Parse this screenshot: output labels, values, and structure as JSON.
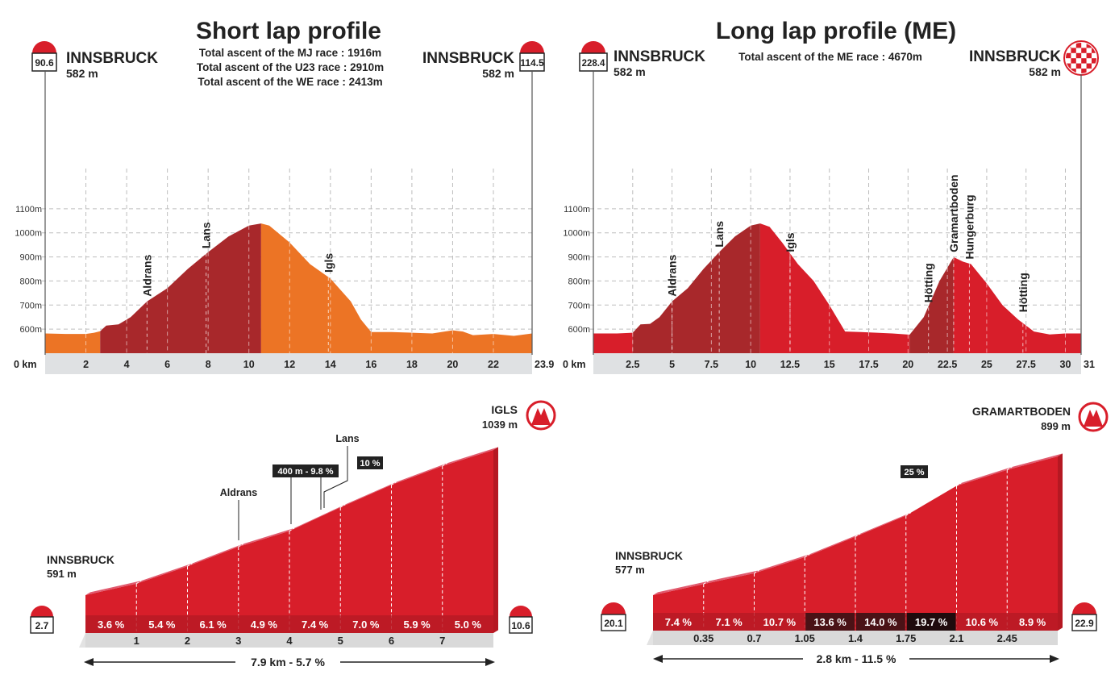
{
  "colors": {
    "dark_red": "#a8282b",
    "red": "#d81e2a",
    "orange": "#ec7425",
    "pink": "#e15a6e",
    "grid": "#bdbdbd",
    "axis_band": "#dfe1e3"
  },
  "short_lap": {
    "title": "Short lap profile",
    "ascent_lines": [
      "Total ascent of the MJ race : 1916m",
      "Total ascent of the U23 race : 2910m",
      "Total ascent of the WE race : 2413m"
    ],
    "start": {
      "city": "INNSBRUCK",
      "alt": "582 m",
      "km": "90.6"
    },
    "finish": {
      "city": "INNSBRUCK",
      "alt": "582 m",
      "km": "114.5"
    },
    "zero_label": "0 km",
    "end_label": "23.9",
    "places": [
      "Aldrans",
      "Lans",
      "Igls"
    ]
  },
  "long_lap": {
    "title": "Long lap profile (ME)",
    "ascent_lines": [
      "Total ascent of the ME race : 4670m"
    ],
    "start": {
      "city": "INNSBRUCK",
      "alt": "582 m",
      "km": "228.4"
    },
    "finish": {
      "city": "INNSBRUCK",
      "alt": "582 m",
      "icon": "checkered-flag-icon"
    },
    "zero_label": "0 km",
    "end_label": "31",
    "places": [
      "Aldrans",
      "Lans",
      "Igls",
      "Hötting",
      "Gramartboden",
      "Hungerburg",
      "Hötting"
    ]
  },
  "climb_igls": {
    "start_city": "INNSBRUCK",
    "start_alt": "591 m",
    "start_km": "2.7",
    "top_name": "IGLS",
    "top_alt": "1039 m",
    "end_km": "10.6",
    "summary": "7.9 km - 5.7 %",
    "labels": [
      "Aldrans",
      "Lans"
    ],
    "tags": [
      "400 m - 9.8 %",
      "10 %"
    ],
    "distances": [
      "1",
      "2",
      "3",
      "4",
      "5",
      "6",
      "7"
    ]
  },
  "climb_gramartboden": {
    "start_city": "INNSBRUCK",
    "start_alt": "577 m",
    "start_km": "20.1",
    "top_name": "GRAMARTBODEN",
    "top_alt": "899 m",
    "end_km": "22.9",
    "summary": "2.8 km - 11.5 %",
    "tags": [
      "25 %"
    ],
    "distances": [
      "0.35",
      "0.7",
      "1.05",
      "1.4",
      "1.75",
      "2.1",
      "2.45"
    ]
  },
  "chart_data": [
    {
      "type": "area",
      "title": "Short lap profile",
      "xlabel": "",
      "ylabel": "",
      "xlim": [
        0,
        23.9
      ],
      "ylim": [
        500,
        1200
      ],
      "xticks": [
        2,
        4,
        6,
        8,
        10,
        12,
        14,
        16,
        18,
        20,
        22
      ],
      "yticks": [
        600,
        700,
        800,
        900,
        1000,
        1100
      ],
      "ytick_labels": [
        "600m",
        "700m",
        "800m",
        "900m",
        "1000m",
        "1100m"
      ],
      "grid": true,
      "x": [
        0,
        1,
        2,
        2.4,
        2.7,
        3.0,
        3.6,
        4.2,
        5.0,
        6.0,
        7.0,
        8.0,
        9.0,
        10.0,
        10.6,
        11.0,
        12.0,
        13.0,
        14.0,
        15.0,
        15.5,
        16.0,
        17.0,
        18.0,
        19.0,
        20.0,
        20.5,
        21.0,
        22.0,
        23.0,
        23.9
      ],
      "y": [
        582,
        580,
        580,
        585,
        591,
        615,
        620,
        650,
        715,
        770,
        850,
        920,
        985,
        1030,
        1039,
        1030,
        960,
        870,
        810,
        715,
        640,
        588,
        588,
        585,
        582,
        595,
        590,
        575,
        580,
        572,
        582
      ],
      "segments": [
        {
          "from": 0,
          "to": 2.7,
          "color": "orange"
        },
        {
          "from": 2.7,
          "to": 10.6,
          "color": "dark_red"
        },
        {
          "from": 10.6,
          "to": 23.9,
          "color": "orange"
        }
      ],
      "annotations": [
        {
          "text": "Aldrans",
          "x": 5.0,
          "y": 715
        },
        {
          "text": "Lans",
          "x": 7.9,
          "y": 915
        },
        {
          "text": "Igls",
          "x": 13.9,
          "y": 815
        }
      ]
    },
    {
      "type": "area",
      "title": "Long lap profile (ME)",
      "xlabel": "",
      "ylabel": "",
      "xlim": [
        0,
        31
      ],
      "ylim": [
        500,
        1200
      ],
      "xticks": [
        2.5,
        5,
        7.5,
        10,
        12.5,
        15,
        17.5,
        20,
        22.5,
        25,
        27.5,
        30
      ],
      "yticks": [
        600,
        700,
        800,
        900,
        1000,
        1100
      ],
      "ytick_labels": [
        "600m",
        "700m",
        "800m",
        "900m",
        "1000m",
        "1100m"
      ],
      "grid": true,
      "x": [
        0,
        1.5,
        2.5,
        3.0,
        3.6,
        4.2,
        5.0,
        6.0,
        7.0,
        8.0,
        9.0,
        10.0,
        10.6,
        11.2,
        12.0,
        13.0,
        14.0,
        15.0,
        16.0,
        17.0,
        18.0,
        19.0,
        20.1,
        21.0,
        22.0,
        22.9,
        23.5,
        24.0,
        25.0,
        26.0,
        27.0,
        28.0,
        29.0,
        30.0,
        31.0
      ],
      "y": [
        582,
        582,
        585,
        620,
        622,
        650,
        715,
        770,
        850,
        920,
        985,
        1030,
        1039,
        1025,
        960,
        870,
        800,
        700,
        590,
        588,
        585,
        582,
        577,
        650,
        800,
        899,
        880,
        870,
        790,
        700,
        640,
        590,
        578,
        582,
        582
      ],
      "segments": [
        {
          "from": 0,
          "to": 2.5,
          "color": "red"
        },
        {
          "from": 2.5,
          "to": 10.6,
          "color": "dark_red"
        },
        {
          "from": 10.6,
          "to": 20.1,
          "color": "red"
        },
        {
          "from": 20.1,
          "to": 22.9,
          "color": "dark_red"
        },
        {
          "from": 22.9,
          "to": 31,
          "color": "red"
        }
      ],
      "annotations": [
        {
          "text": "Aldrans",
          "x": 5.0,
          "y": 715
        },
        {
          "text": "Lans",
          "x": 8.0,
          "y": 920
        },
        {
          "text": "Igls",
          "x": 12.5,
          "y": 900
        },
        {
          "text": "Hötting",
          "x": 21.3,
          "y": 690
        },
        {
          "text": "Gramartboden",
          "x": 22.9,
          "y": 899
        },
        {
          "text": "Hungerburg",
          "x": 23.9,
          "y": 870
        },
        {
          "text": "Hötting",
          "x": 27.3,
          "y": 650
        }
      ]
    },
    {
      "type": "area",
      "title": "",
      "subtype": "climb_gradient",
      "length_km": 7.9,
      "average_gradient_pct": 5.7,
      "start_alt_m": 591,
      "top_alt_m": 1039,
      "km_marks": [
        1,
        2,
        3,
        4,
        5,
        6,
        7
      ],
      "segment_gradients_pct": [
        3.6,
        5.4,
        6.1,
        4.9,
        7.4,
        7.0,
        5.9,
        5.0
      ],
      "segment_labels": [
        "3.6 %",
        "5.4 %",
        "6.1 %",
        "4.9 %",
        "7.4 %",
        "7.0 %",
        "5.9 %",
        "5.0 %"
      ]
    },
    {
      "type": "area",
      "title": "",
      "subtype": "climb_gradient",
      "length_km": 2.8,
      "average_gradient_pct": 11.5,
      "start_alt_m": 577,
      "top_alt_m": 899,
      "km_marks": [
        0.35,
        0.7,
        1.05,
        1.4,
        1.75,
        2.1,
        2.45
      ],
      "segment_gradients_pct": [
        7.4,
        7.1,
        10.7,
        13.6,
        14.0,
        19.7,
        10.6,
        8.9
      ],
      "segment_labels": [
        "7.4 %",
        "7.1 %",
        "10.7 %",
        "13.6 %",
        "14.0 %",
        "19.7 %",
        "10.6 %",
        "8.9 %"
      ]
    }
  ]
}
